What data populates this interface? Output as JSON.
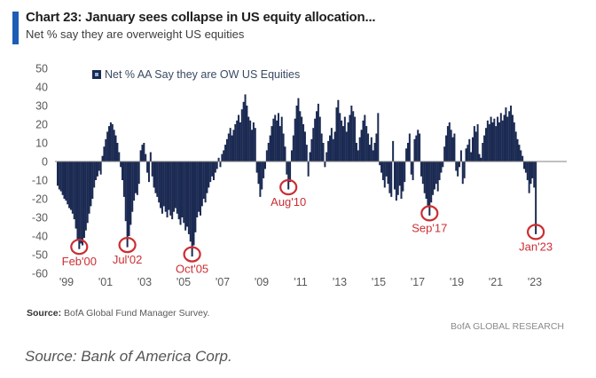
{
  "header": {
    "title": "Chart 23: January sees collapse in US equity allocation...",
    "subtitle": "Net % say they are overweight US equities"
  },
  "legend": {
    "label": "Net % AA Say they are OW US Equities"
  },
  "footer": {
    "source_label": "Source:",
    "source_text": " BofA Global Fund Manager Survey.",
    "brand": "BofA GLOBAL RESEARCH"
  },
  "caption": "Source: Bank of America Corp.",
  "colors": {
    "bar": "#1b2a52",
    "accent": "#1d5db6",
    "annotation": "#cb2e33",
    "axis_text": "#595959",
    "zero_line": "#808080",
    "legend_marker_inner": "#8fb4dc"
  },
  "chart_data": {
    "type": "bar",
    "title": "Chart 23: January sees collapse in US equity allocation...",
    "subtitle": "Net % say they are overweight US equities",
    "series_name": "Net % AA Say they are OW US Equities",
    "frequency": "monthly",
    "start_month": "1999-01",
    "end_month": "2023-01",
    "ylim": [
      -60,
      50
    ],
    "y_ticks": [
      50,
      40,
      30,
      20,
      10,
      0,
      -10,
      -20,
      -30,
      -40,
      -50,
      -60
    ],
    "x_ticks": [
      "'99",
      "'01",
      "'03",
      "'05",
      "'07",
      "'09",
      "'11",
      "'13",
      "'15",
      "'17",
      "'19",
      "'21",
      "'23"
    ],
    "grid": false,
    "legend_position": "top",
    "values": [
      -13,
      -15,
      -16,
      -18,
      -20,
      -21,
      -23,
      -25,
      -26,
      -28,
      -31,
      -36,
      -42,
      -47,
      -44,
      -45,
      -41,
      -37,
      -33,
      -28,
      -24,
      -20,
      -14,
      -10,
      -8,
      -5,
      -7,
      3,
      8,
      12,
      16,
      19,
      21,
      20,
      17,
      14,
      10,
      5,
      -3,
      -10,
      -19,
      -32,
      -46,
      -40,
      -34,
      -27,
      -21,
      -17,
      -18,
      -12,
      6,
      9,
      10,
      4,
      -6,
      -11,
      5,
      -8,
      -14,
      -17,
      -19,
      -22,
      -25,
      -28,
      -24,
      -27,
      -30,
      -26,
      -29,
      -31,
      -27,
      -25,
      -28,
      -31,
      -34,
      -30,
      -33,
      -37,
      -35,
      -39,
      -43,
      -51,
      -45,
      -38,
      -30,
      -27,
      -29,
      -24,
      -20,
      -22,
      -17,
      -14,
      -11,
      -8,
      -10,
      -6,
      -4,
      2,
      -3,
      4,
      6,
      9,
      12,
      15,
      18,
      14,
      17,
      20,
      22,
      25,
      21,
      28,
      32,
      36,
      30,
      24,
      22,
      17,
      21,
      18,
      -6,
      -12,
      -19,
      -15,
      -9,
      -4,
      6,
      10,
      14,
      19,
      23,
      25,
      22,
      26,
      19,
      24,
      15,
      8,
      -7,
      -15,
      -11,
      6,
      14,
      23,
      30,
      34,
      27,
      24,
      20,
      16,
      9,
      -8,
      5,
      12,
      18,
      23,
      27,
      31,
      24,
      15,
      10,
      -3,
      5,
      11,
      14,
      18,
      12,
      16,
      29,
      33,
      26,
      22,
      19,
      24,
      16,
      21,
      25,
      30,
      27,
      24,
      10,
      6,
      13,
      17,
      22,
      25,
      19,
      15,
      9,
      13,
      6,
      10,
      15,
      26,
      -2,
      -6,
      -10,
      -14,
      -8,
      -12,
      -17,
      -19,
      11,
      -15,
      -21,
      -18,
      -13,
      -20,
      -16,
      -11,
      7,
      10,
      15,
      -7,
      -10,
      12,
      14,
      17,
      15,
      -8,
      -12,
      -17,
      -20,
      -24,
      -29,
      -22,
      -18,
      -15,
      -12,
      -16,
      -10,
      -6,
      -3,
      8,
      14,
      19,
      21,
      17,
      13,
      15,
      -5,
      -8,
      -3,
      6,
      -12,
      -9,
      7,
      9,
      12,
      5,
      13,
      19,
      16,
      20,
      4,
      2,
      10,
      14,
      18,
      22,
      20,
      24,
      21,
      23,
      19,
      24,
      21,
      26,
      22,
      25,
      29,
      24,
      27,
      30,
      25,
      21,
      16,
      12,
      9,
      6,
      3,
      -4,
      -6,
      -10,
      -17,
      -12,
      -9,
      -14,
      -39
    ],
    "annotations": [
      {
        "label": "Feb'00",
        "month": "2000-02",
        "value": -47
      },
      {
        "label": "Jul'02",
        "month": "2002-07",
        "value": -46
      },
      {
        "label": "Oct'05",
        "month": "2005-10",
        "value": -51
      },
      {
        "label": "Aug'10",
        "month": "2010-08",
        "value": -15
      },
      {
        "label": "Sep'17",
        "month": "2017-09",
        "value": -29
      },
      {
        "label": "Jan'23",
        "month": "2023-01",
        "value": -39
      }
    ]
  }
}
